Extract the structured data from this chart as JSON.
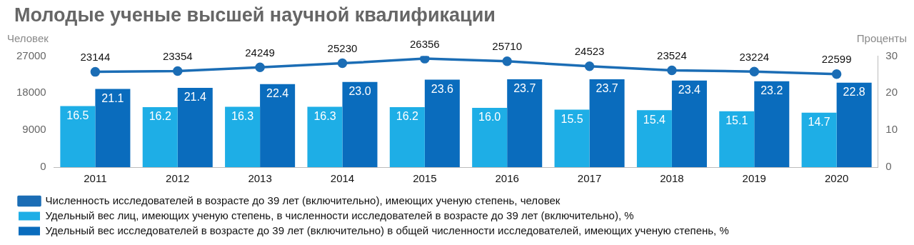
{
  "chart_data": {
    "type": "bar",
    "title": "Молодые ученые высшей научной квалификации",
    "ylabel": "Человек",
    "y2label": "Проценты",
    "categories": [
      "2011",
      "2012",
      "2013",
      "2014",
      "2015",
      "2016",
      "2017",
      "2018",
      "2019",
      "2020"
    ],
    "ylim": [
      0,
      27000
    ],
    "yticks": [
      0,
      9000,
      18000,
      27000
    ],
    "y2lim": [
      0,
      30
    ],
    "y2ticks": [
      0,
      10,
      20,
      30
    ],
    "grid": false,
    "legend": "bottom",
    "series": [
      {
        "name": "Численность исследователей в возрасте до 39 лет (включительно), имеющих ученую степень, человек",
        "type": "line",
        "marker": "circle",
        "line_style": "solid",
        "color": "#1b6db5",
        "values": [
          23144,
          23354,
          24249,
          25230,
          26356,
          25710,
          24523,
          23524,
          23224,
          22599
        ],
        "value_labels": [
          "23144",
          "23354",
          "24249",
          "25230",
          "26356",
          "25710",
          "24523",
          "23524",
          "23224",
          "22599"
        ]
      },
      {
        "name": "Удельный вес лиц, имеющих ученую степень, в численности исследователей в возрасте до 39 лет (включительно), %",
        "axis": "y2",
        "color": "#1eaee6",
        "values": [
          16.5,
          16.2,
          16.3,
          16.3,
          16.2,
          16.0,
          15.5,
          15.4,
          15.1,
          14.7
        ],
        "value_labels": [
          "16.5",
          "16.2",
          "16.3",
          "16.3",
          "16.2",
          "16.0",
          "15.5",
          "15.4",
          "15.1",
          "14.7"
        ]
      },
      {
        "name": "Удельный вес исследователей в возрасте до 39 лет (включительно) в общей численности исследователей, имеющих ученую степень, %",
        "axis": "y2",
        "color": "#0a6cbd",
        "values": [
          21.1,
          21.4,
          22.4,
          23.0,
          23.6,
          23.7,
          23.7,
          23.4,
          23.2,
          22.8
        ],
        "value_labels": [
          "21.1",
          "21.4",
          "22.4",
          "23.0",
          "23.6",
          "23.7",
          "23.7",
          "23.4",
          "23.2",
          "22.8"
        ]
      }
    ]
  }
}
